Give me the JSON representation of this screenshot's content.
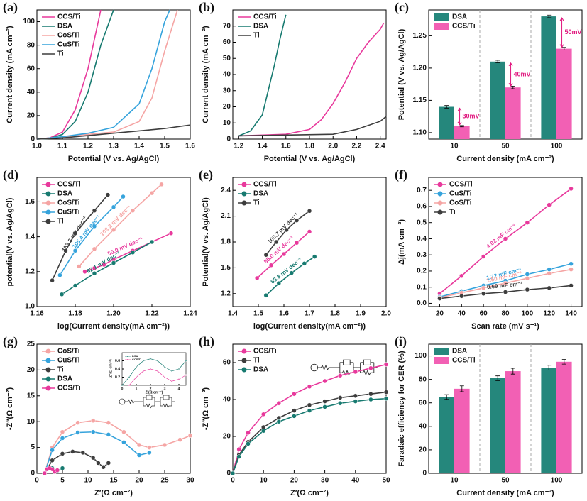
{
  "chart_data": [
    {
      "type": "line",
      "panel_label": "(a)",
      "xlabel": "Potential (V vs. Ag/AgCl)",
      "ylabel": "Current density (mA cm⁻²)",
      "xlim": [
        1.0,
        1.6
      ],
      "xticks": [
        {
          "value": 1.0,
          "label": "1.0"
        },
        1.1,
        1.2,
        1.3,
        1.4,
        1.5,
        1.6
      ],
      "ylim": [
        0,
        110
      ],
      "yticks": [
        0,
        20,
        40,
        60,
        80,
        100
      ],
      "legend": "upper left",
      "markers": false,
      "series": [
        {
          "name": "CCS/Ti",
          "color": "#e8399c",
          "x": [
            1.0,
            1.05,
            1.1,
            1.15,
            1.2,
            1.25
          ],
          "values": [
            0,
            1,
            6,
            25,
            60,
            110
          ]
        },
        {
          "name": "DSA",
          "color": "#177a70",
          "x": [
            1.0,
            1.05,
            1.1,
            1.15,
            1.2,
            1.25,
            1.3
          ],
          "values": [
            0,
            0.5,
            4,
            15,
            40,
            80,
            110
          ]
        },
        {
          "name": "CoS/Ti",
          "color": "#f5a5a4",
          "x": [
            1.0,
            1.1,
            1.2,
            1.3,
            1.4,
            1.45,
            1.5,
            1.55
          ],
          "values": [
            0,
            2,
            4,
            6,
            15,
            35,
            75,
            110
          ]
        },
        {
          "name": "CuS/Ti",
          "color": "#35a3dc",
          "x": [
            1.0,
            1.1,
            1.2,
            1.3,
            1.4,
            1.45,
            1.5,
            1.52
          ],
          "values": [
            0,
            2,
            5,
            10,
            30,
            60,
            100,
            110
          ]
        },
        {
          "name": "Ti",
          "color": "#3d3d3d",
          "x": [
            1.0,
            1.1,
            1.2,
            1.3,
            1.4,
            1.5,
            1.6
          ],
          "values": [
            0,
            1,
            3,
            5,
            7,
            9,
            12
          ]
        }
      ]
    },
    {
      "type": "line",
      "panel_label": "(b)",
      "xlabel": "Potential (V vs. Ag/AgCl)",
      "ylabel": "Current density (mA cm⁻²)",
      "xlim": [
        1.15,
        2.45
      ],
      "xticks": [
        1.2,
        1.4,
        1.6,
        1.8,
        {
          "value": 2.0,
          "label": "2.0"
        },
        2.2,
        2.4
      ],
      "ylim": [
        0,
        80
      ],
      "yticks": [
        0,
        10,
        20,
        30,
        40,
        50,
        60,
        70
      ],
      "legend": "upper left",
      "markers": false,
      "series": [
        {
          "name": "CCS/Ti",
          "color": "#e8399c",
          "x": [
            1.2,
            1.6,
            1.8,
            1.9,
            2.0,
            2.1,
            2.2,
            2.3,
            2.4,
            2.43
          ],
          "values": [
            2,
            3,
            6,
            12,
            22,
            35,
            50,
            60,
            68,
            72
          ]
        },
        {
          "name": "DSA",
          "color": "#177a70",
          "x": [
            1.2,
            1.3,
            1.4,
            1.45,
            1.5,
            1.55,
            1.6
          ],
          "values": [
            2,
            5,
            15,
            30,
            45,
            62,
            77
          ]
        },
        {
          "name": "Ti",
          "color": "#3d3d3d",
          "x": [
            1.2,
            1.6,
            2.0,
            2.2,
            2.4,
            2.45
          ],
          "values": [
            2,
            2.5,
            3,
            6,
            11,
            14
          ]
        }
      ]
    },
    {
      "type": "bar",
      "panel_label": "(c)",
      "xlabel": "Current density (mA cm⁻²)",
      "ylabel": "Potential (V vs. Ag/AgCl)",
      "categories": [
        "10",
        "50",
        "100"
      ],
      "ylim": [
        1.09,
        1.29
      ],
      "yticks": [
        {
          "value": 1.1,
          "label": "1.10"
        },
        1.15,
        {
          "value": 1.2,
          "label": "1.20"
        },
        1.25
      ],
      "legend": "upper left",
      "annotations": [
        "30mV",
        "40mV",
        "50mV"
      ],
      "series": [
        {
          "name": "DSA",
          "color": "#25877c",
          "values": [
            1.14,
            1.21,
            1.28
          ],
          "errors": [
            0.002,
            0.002,
            0.002
          ]
        },
        {
          "name": "CCS/Ti",
          "color": "#f260b4",
          "values": [
            1.11,
            1.17,
            1.23
          ],
          "errors": [
            0.001,
            0.002,
            0.002
          ]
        }
      ]
    },
    {
      "type": "line",
      "panel_label": "(d)",
      "xlabel": "log(Current density(mA cm⁻²))",
      "ylabel": "potential(V vs. Ag/AgCl)",
      "xlim": [
        1.16,
        1.24
      ],
      "xticks": [
        1.16,
        1.18,
        {
          "value": 1.2,
          "label": "1.20"
        },
        1.22,
        1.24
      ],
      "ylim": [
        1.0,
        1.74
      ],
      "yticks": [
        {
          "value": 1.0,
          "label": "1.0"
        },
        1.2,
        1.4,
        1.6
      ],
      "legend": "upper left",
      "markers": true,
      "series": [
        {
          "name": "CCS/Ti",
          "color": "#e8399c",
          "label": "50.0 mV dec⁻¹",
          "x": [
            1.185,
            1.19,
            1.195,
            1.2,
            1.21,
            1.22,
            1.23
          ],
          "values": [
            1.2,
            1.22,
            1.24,
            1.27,
            1.32,
            1.37,
            1.42
          ]
        },
        {
          "name": "DSA",
          "color": "#177a70",
          "label": "62.1 mV dec⁻¹",
          "x": [
            1.173,
            1.18,
            1.19,
            1.2,
            1.21,
            1.22
          ],
          "values": [
            1.07,
            1.12,
            1.19,
            1.25,
            1.31,
            1.37
          ]
        },
        {
          "name": "CoS/Ti",
          "color": "#f5a5a4",
          "label": "108.2 mV dec⁻¹",
          "x": [
            1.182,
            1.19,
            1.2,
            1.21,
            1.22,
            1.225
          ],
          "values": [
            1.23,
            1.33,
            1.44,
            1.55,
            1.65,
            1.7
          ]
        },
        {
          "name": "CuS/Ti",
          "color": "#35a3dc",
          "label": "105.4 mV dec⁻¹",
          "x": [
            1.172,
            1.18,
            1.19,
            1.2,
            1.205
          ],
          "values": [
            1.18,
            1.32,
            1.46,
            1.57,
            1.63
          ]
        },
        {
          "name": "Ti",
          "color": "#3d3d3d",
          "label": "153.3 mV dec⁻¹",
          "x": [
            1.168,
            1.175,
            1.18,
            1.19,
            1.197
          ],
          "values": [
            1.15,
            1.32,
            1.42,
            1.55,
            1.64
          ]
        }
      ]
    },
    {
      "type": "line",
      "panel_label": "(e)",
      "xlabel": "log(Current density(mA cm⁻²))",
      "ylabel": "Potential(V vs. Ag/AgCl)",
      "xlim": [
        1.4,
        2.0
      ],
      "xticks": [
        1.4,
        1.5,
        1.6,
        1.7,
        1.8,
        1.9,
        {
          "value": 2.0,
          "label": "2.0"
        }
      ],
      "ylim": [
        1.05,
        2.55
      ],
      "yticks": [
        1.2,
        1.5,
        1.8,
        2.1,
        2.4
      ],
      "legend": "upper left",
      "markers": true,
      "series": [
        {
          "name": "CCS/Ti",
          "color": "#e8399c",
          "label": "85.0 mV dec⁻¹",
          "x": [
            1.495,
            1.55,
            1.6,
            1.65,
            1.7
          ],
          "values": [
            1.38,
            1.53,
            1.66,
            1.79,
            1.92
          ]
        },
        {
          "name": "DSA",
          "color": "#177a70",
          "label": "63.3 mV dec⁻¹",
          "x": [
            1.53,
            1.58,
            1.63,
            1.68,
            1.72
          ],
          "values": [
            1.18,
            1.32,
            1.44,
            1.55,
            1.63
          ]
        },
        {
          "name": "Ti",
          "color": "#3d3d3d",
          "label": "100.7 mV dec⁻¹",
          "x": [
            1.53,
            1.57,
            1.61,
            1.65,
            1.7
          ],
          "values": [
            1.65,
            1.8,
            1.94,
            2.05,
            2.16
          ]
        }
      ]
    },
    {
      "type": "line",
      "panel_label": "(f)",
      "xlabel": "Scan rate (mV s⁻¹)",
      "ylabel": "Δj(mA cm⁻²)",
      "xlim": [
        10,
        150
      ],
      "xticks": [
        20,
        40,
        60,
        80,
        100,
        120,
        140
      ],
      "ylim": [
        -0.02,
        0.78
      ],
      "yticks": [
        {
          "value": 0.0,
          "label": "0.0"
        },
        0.1,
        0.2,
        0.3,
        0.4,
        0.5,
        0.6,
        0.7
      ],
      "legend": "upper left",
      "markers": true,
      "series": [
        {
          "name": "CCS/Ti",
          "color": "#e8399c",
          "label": "4.02 mF cm⁻²",
          "x": [
            20,
            40,
            60,
            80,
            100,
            120,
            140
          ],
          "values": [
            0.06,
            0.17,
            0.29,
            0.4,
            0.5,
            0.61,
            0.71
          ]
        },
        {
          "name": "CuS/Ti",
          "color": "#35a3dc",
          "label": "1.72 mF cm⁻²",
          "x": [
            20,
            40,
            60,
            80,
            100,
            120,
            140
          ],
          "values": [
            0.04,
            0.075,
            0.11,
            0.14,
            0.18,
            0.21,
            0.245
          ]
        },
        {
          "name": "CoS/Ti",
          "color": "#f5a5a4",
          "label": "1.50 mF cm⁻²",
          "x": [
            20,
            40,
            60,
            80,
            100,
            120,
            140
          ],
          "values": [
            0.035,
            0.065,
            0.095,
            0.125,
            0.155,
            0.185,
            0.21
          ]
        },
        {
          "name": "Ti",
          "color": "#3d3d3d",
          "label": "0.69 mF cm⁻²",
          "x": [
            20,
            40,
            60,
            80,
            100,
            120,
            140
          ],
          "values": [
            0.03,
            0.045,
            0.06,
            0.07,
            0.085,
            0.095,
            0.11
          ]
        }
      ]
    },
    {
      "type": "line",
      "panel_label": "(g)",
      "xlabel": "Z′(Ω cm⁻²)",
      "ylabel": "-Z″(Ω cm⁻²)",
      "xlim": [
        0,
        30
      ],
      "xticks": [
        0,
        5,
        10,
        15,
        20,
        25,
        30
      ],
      "ylim": [
        0,
        25
      ],
      "yticks": [
        0,
        5,
        10,
        15,
        20,
        25
      ],
      "legend": "upper left",
      "markers": true,
      "series": [
        {
          "name": "CoS/Ti",
          "color": "#f5a5a4",
          "x": [
            1.5,
            3,
            5,
            8,
            11,
            14,
            17,
            20,
            22,
            25,
            28,
            30
          ],
          "values": [
            0,
            5,
            8,
            9.8,
            10.2,
            9.8,
            8,
            5.5,
            5,
            5.5,
            6.5,
            7.3
          ]
        },
        {
          "name": "CuS/Ti",
          "color": "#35a3dc",
          "x": [
            1.5,
            3,
            5,
            8,
            11,
            14,
            17,
            20,
            22
          ],
          "values": [
            0,
            4.5,
            6.8,
            7.9,
            8,
            7.5,
            6,
            3.5,
            4
          ]
        },
        {
          "name": "Ti",
          "color": "#3d3d3d",
          "x": [
            1.5,
            3,
            5,
            7,
            9,
            11,
            12,
            13,
            14
          ],
          "values": [
            0,
            2.5,
            3.8,
            4.2,
            4,
            3,
            2,
            1.2,
            2
          ]
        },
        {
          "name": "DSA",
          "color": "#177a70",
          "x": [
            1.5,
            2,
            3,
            4,
            5
          ],
          "values": [
            0,
            0.8,
            1,
            0.5,
            1
          ]
        },
        {
          "name": "CCS/Ti",
          "color": "#e8399c",
          "x": [
            1.5,
            2,
            2.5,
            3,
            3.5,
            4
          ],
          "values": [
            0,
            0.8,
            1,
            0.8,
            0.3,
            0.6
          ]
        }
      ]
    },
    {
      "type": "line",
      "panel_label": "(h)",
      "xlabel": "Z′(Ω cm⁻²)",
      "ylabel": "-Z″(Ω cm⁻²)",
      "xlim": [
        0,
        50
      ],
      "xticks": [
        0,
        10,
        20,
        30,
        40,
        50
      ],
      "ylim": [
        0,
        70
      ],
      "yticks": [
        0,
        20,
        40,
        60
      ],
      "legend": "upper left",
      "markers": true,
      "series": [
        {
          "name": "CCS/Ti",
          "color": "#e8399c",
          "x": [
            0,
            2,
            5,
            10,
            15,
            20,
            25,
            30,
            35,
            40,
            45,
            50
          ],
          "values": [
            0,
            13,
            22,
            32,
            38,
            43,
            47,
            50,
            53,
            55,
            57,
            59
          ]
        },
        {
          "name": "Ti",
          "color": "#3d3d3d",
          "x": [
            0,
            2,
            5,
            10,
            15,
            20,
            25,
            30,
            35,
            40,
            45,
            50
          ],
          "values": [
            0,
            10,
            17,
            25,
            30,
            34,
            37,
            39,
            41,
            42,
            43,
            44
          ]
        },
        {
          "name": "DSA",
          "color": "#177a70",
          "x": [
            0,
            2,
            5,
            10,
            15,
            20,
            25,
            30,
            35,
            40,
            45,
            50
          ],
          "values": [
            0,
            9,
            16,
            23,
            28,
            31,
            34,
            36,
            38,
            39,
            40,
            40.5
          ]
        }
      ]
    },
    {
      "type": "bar",
      "panel_label": "(i)",
      "xlabel": "Current density (mA cm⁻²)",
      "ylabel": "Faradaic efficiency for CER (%)",
      "categories": [
        "10",
        "50",
        "100"
      ],
      "ylim": [
        0,
        110
      ],
      "yticks": [
        0,
        20,
        40,
        60,
        80,
        100
      ],
      "legend": "upper left",
      "series": [
        {
          "name": "DSA",
          "color": "#25877c",
          "values": [
            65,
            81,
            90
          ],
          "errors": [
            2,
            2,
            2
          ]
        },
        {
          "name": "CCS/Ti",
          "color": "#f260b4",
          "values": [
            72,
            87,
            95
          ],
          "errors": [
            2.5,
            2.5,
            2
          ]
        }
      ]
    },
    {
      "type": "line",
      "xlabel": "Z′(Ω cm⁻²)",
      "ylabel": "-Z″(Ω cm⁻²)",
      "xlim": [
        0,
        4.5
      ],
      "xticks": [
        0,
        1,
        2,
        3,
        4
      ],
      "ylim": [
        0,
        0.8
      ],
      "yticks": [
        0.2,
        0.4,
        0.6
      ],
      "legend": "upper left",
      "markers": true,
      "series": [
        {
          "name": "DSA",
          "color": "#177a70",
          "x": [
            0,
            0.5,
            1,
            1.5,
            2,
            2.5,
            3,
            3.5,
            4,
            4.5
          ],
          "values": [
            0,
            0.2,
            0.45,
            0.6,
            0.65,
            0.6,
            0.45,
            0.35,
            0.4,
            0.6
          ]
        },
        {
          "name": "CCS/Ti",
          "color": "#e8399c",
          "x": [
            0.5,
            1,
            1.5,
            2,
            2.5,
            3,
            3.5,
            4,
            4.5
          ],
          "values": [
            0,
            0.2,
            0.35,
            0.4,
            0.35,
            0.2,
            0.1,
            0.15,
            0.25
          ]
        }
      ]
    }
  ]
}
